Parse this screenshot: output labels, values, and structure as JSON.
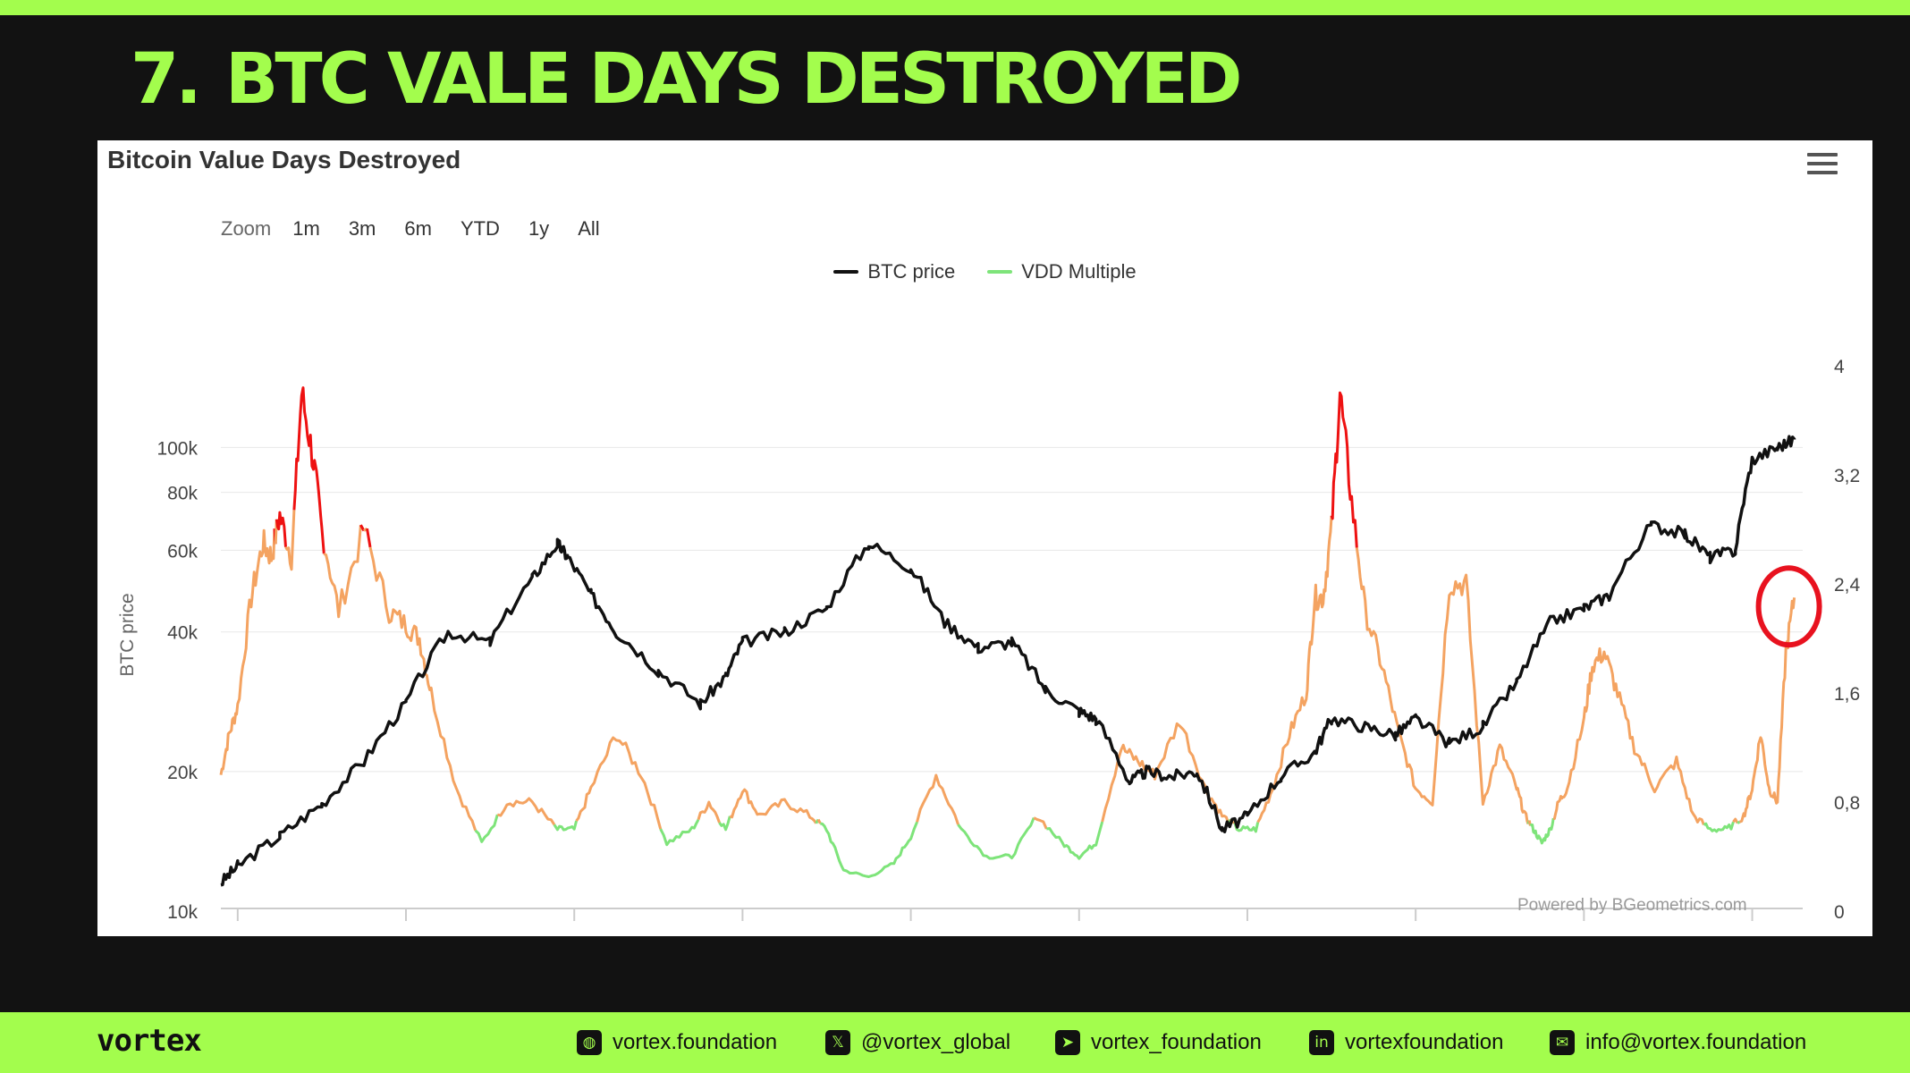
{
  "slide": {
    "number": "7.",
    "title": "BTC VALE DAYS DESTROYED"
  },
  "chart_card": {
    "title": "Bitcoin Value Days Destroyed",
    "zoom_label": "Zoom",
    "zoom_options": [
      "1m",
      "3m",
      "6m",
      "YTD",
      "1y",
      "All"
    ],
    "credit": "Powered by BGeometrics.com"
  },
  "chart_data": {
    "type": "line",
    "title": "Bitcoin Value Days Destroyed",
    "x_axis": {
      "tick_labels": [],
      "range_years": [
        2015.9,
        2025.3
      ]
    },
    "y_left": {
      "label": "BTC price",
      "scale": "log",
      "range": [
        10000,
        150000
      ],
      "ticks": [
        10000,
        20000,
        40000,
        60000,
        80000,
        100000
      ],
      "tick_labels": [
        "10k",
        "20k",
        "40k",
        "60k",
        "80k",
        "100k"
      ]
    },
    "y_right": {
      "label": "",
      "scale": "linear",
      "range": [
        0,
        4
      ],
      "ticks": [
        0,
        0.8,
        1.6,
        2.4,
        3.2,
        4
      ],
      "tick_labels": [
        "0",
        "0,8",
        "1,6",
        "2,4",
        "3,2",
        "4"
      ]
    },
    "legend_position": "top-center",
    "vdd_bands": {
      "green_below": 0.65,
      "red_above": 2.8
    },
    "colors": {
      "btc": "#111111",
      "vdd_low": "#7ee47a",
      "vdd_mid": "#f4a361",
      "vdd_high": "#ee1111",
      "highlight": "#e8121f"
    },
    "series": [
      {
        "name": "BTC price",
        "axis": "left",
        "x": [
          2015.9,
          2016.0,
          2016.25,
          2016.5,
          2016.75,
          2017.0,
          2017.25,
          2017.5,
          2017.75,
          2017.9,
          2017.96,
          2018.1,
          2018.25,
          2018.5,
          2018.75,
          2018.9,
          2019.0,
          2019.25,
          2019.5,
          2019.75,
          2020.0,
          2020.2,
          2020.4,
          2020.6,
          2020.8,
          2021.0,
          2021.1,
          2021.3,
          2021.4,
          2021.55,
          2021.7,
          2021.85,
          2022.0,
          2022.2,
          2022.4,
          2022.5,
          2022.7,
          2022.88,
          2023.0,
          2023.2,
          2023.4,
          2023.6,
          2023.8,
          2024.0,
          2024.15,
          2024.4,
          2024.6,
          2024.75,
          2024.9,
          2025.0,
          2025.15,
          2025.25
        ],
        "y": [
          11500,
          12500,
          14500,
          17000,
          21000,
          28000,
          40000,
          38000,
          52000,
          62000,
          58000,
          48000,
          40000,
          33000,
          28000,
          32000,
          38000,
          40000,
          45000,
          62000,
          55000,
          42000,
          37000,
          38000,
          30000,
          27000,
          26000,
          19000,
          20000,
          19500,
          20000,
          15000,
          16000,
          19500,
          22000,
          26000,
          25000,
          24000,
          26000,
          23000,
          25000,
          31000,
          42000,
          45000,
          48000,
          68000,
          65000,
          58000,
          60000,
          94000,
          100000,
          104000
        ]
      },
      {
        "name": "VDD Multiple",
        "axis": "right",
        "x": [
          2015.9,
          2015.95,
          2016.0,
          2016.08,
          2016.15,
          2016.2,
          2016.25,
          2016.32,
          2016.38,
          2016.45,
          2016.5,
          2016.6,
          2016.75,
          2016.9,
          2017.0,
          2017.08,
          2017.15,
          2017.3,
          2017.45,
          2017.6,
          2017.75,
          2017.9,
          2018.0,
          2018.1,
          2018.25,
          2018.4,
          2018.55,
          2018.7,
          2018.8,
          2018.9,
          2019.0,
          2019.1,
          2019.25,
          2019.4,
          2019.5,
          2019.6,
          2019.75,
          2019.9,
          2020.0,
          2020.15,
          2020.3,
          2020.45,
          2020.6,
          2020.75,
          2020.9,
          2021.0,
          2021.1,
          2021.25,
          2021.35,
          2021.45,
          2021.6,
          2021.75,
          2021.85,
          2021.95,
          2022.05,
          2022.15,
          2022.25,
          2022.35,
          2022.4,
          2022.45,
          2022.5,
          2022.55,
          2022.62,
          2022.7,
          2022.8,
          2022.9,
          2023.0,
          2023.1,
          2023.2,
          2023.3,
          2023.4,
          2023.5,
          2023.6,
          2023.65,
          2023.7,
          2023.75,
          2023.8,
          2023.85,
          2023.9,
          2024.0,
          2024.05,
          2024.12,
          2024.2,
          2024.3,
          2024.42,
          2024.55,
          2024.65,
          2024.75,
          2024.85,
          2024.95,
          2025.0,
          2025.05,
          2025.1,
          2025.15,
          2025.2,
          2025.25
        ],
        "y": [
          1.0,
          1.3,
          1.5,
          2.3,
          2.7,
          2.6,
          2.9,
          2.6,
          3.8,
          3.3,
          2.8,
          2.2,
          2.8,
          2.2,
          2.1,
          2.0,
          1.6,
          0.9,
          0.5,
          0.8,
          0.8,
          0.6,
          0.6,
          0.9,
          1.3,
          1.0,
          0.5,
          0.6,
          0.8,
          0.6,
          0.9,
          0.7,
          0.8,
          0.7,
          0.6,
          0.3,
          0.25,
          0.35,
          0.55,
          1.0,
          0.6,
          0.4,
          0.4,
          0.7,
          0.5,
          0.4,
          0.5,
          1.2,
          1.1,
          1.0,
          1.4,
          0.9,
          0.7,
          0.6,
          0.6,
          0.9,
          1.3,
          1.6,
          2.3,
          2.3,
          2.8,
          3.8,
          3.0,
          2.2,
          1.8,
          1.3,
          0.9,
          0.8,
          2.4,
          2.4,
          0.8,
          1.2,
          0.9,
          0.7,
          0.6,
          0.5,
          0.6,
          0.8,
          0.9,
          1.4,
          1.8,
          1.9,
          1.6,
          1.2,
          0.9,
          1.1,
          0.7,
          0.6,
          0.6,
          0.7,
          0.9,
          1.3,
          0.9,
          0.8,
          1.9,
          2.3
        ]
      }
    ]
  },
  "footer": {
    "logo": "vortex",
    "contacts": [
      {
        "icon": "globe-icon",
        "text": "vortex.foundation"
      },
      {
        "icon": "x-icon",
        "text": "@vortex_global"
      },
      {
        "icon": "telegram-icon",
        "text": "vortex_foundation"
      },
      {
        "icon": "linkedin-icon",
        "text": "vortexfoundation"
      },
      {
        "icon": "mail-icon",
        "text": "info@vortex.foundation"
      }
    ]
  }
}
